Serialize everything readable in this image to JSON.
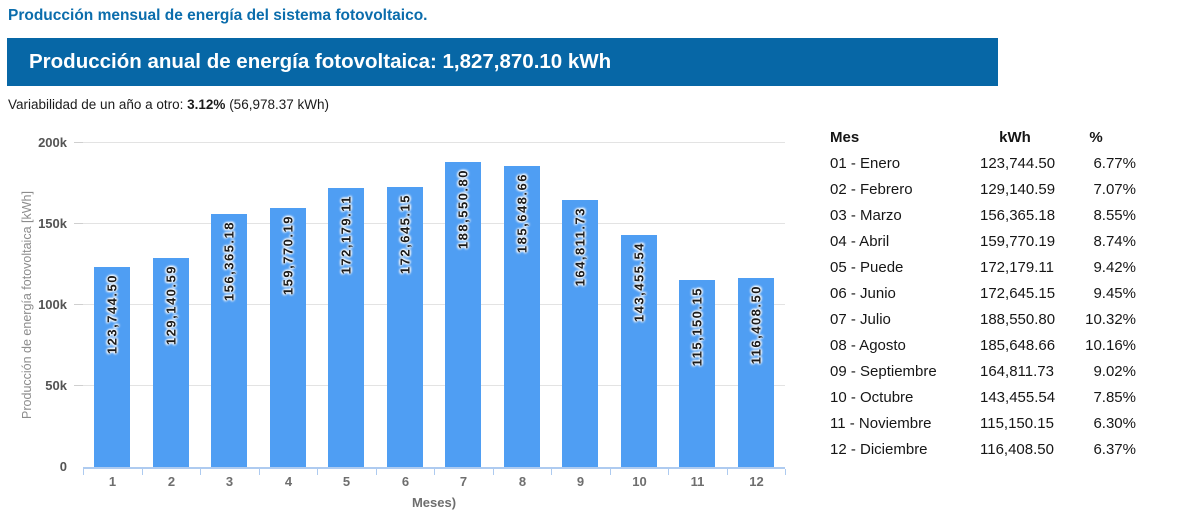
{
  "page": {
    "title": "Producción mensual de energía del sistema fotovoltaico.",
    "banner_text": "Producción anual de energía fotovoltaica: 1,827,870.10 kWh",
    "variability": {
      "prefix": "Variabilidad de un año a otro:",
      "value": "3.12%",
      "suffix": "(56,978.37 kWh)"
    }
  },
  "colors": {
    "accent_blue": "#0767A6",
    "title_blue": "#0B6DAC",
    "bar_blue": "#4F9EF3",
    "axis_blue": "#AECBF0",
    "grid_gray": "#E3E3E3"
  },
  "chart_data": {
    "type": "bar",
    "title": "",
    "xlabel": "Meses)",
    "ylabel": "Producción de energía fotovoltaica [kWh]",
    "categories": [
      "1",
      "2",
      "3",
      "4",
      "5",
      "6",
      "7",
      "8",
      "9",
      "10",
      "11",
      "12"
    ],
    "values": [
      123744.5,
      129140.59,
      156365.18,
      159770.19,
      172179.11,
      172645.15,
      188550.8,
      185648.66,
      164811.73,
      143455.54,
      115150.15,
      116408.5
    ],
    "bar_labels": [
      "123,744.50",
      "129,140.59",
      "156,365.18",
      "159,770.19",
      "172,179.11",
      "172,645.15",
      "188,550.80",
      "185,648.66",
      "164,811.73",
      "143,455.54",
      "115,150.15",
      "116,408.50"
    ],
    "ylim": [
      0,
      200000
    ],
    "ytick_labels": [
      "0",
      "50k",
      "100k",
      "150k",
      "200k"
    ],
    "ytick_values": [
      0,
      50000,
      100000,
      150000,
      200000
    ],
    "grid": true,
    "legend": "none"
  },
  "table": {
    "headers": [
      "Mes",
      "kWh",
      "%"
    ],
    "rows": [
      [
        "01 - Enero",
        "123,744.50",
        "6.77%"
      ],
      [
        "02 - Febrero",
        "129,140.59",
        "7.07%"
      ],
      [
        "03 - Marzo",
        "156,365.18",
        "8.55%"
      ],
      [
        "04 - Abril",
        "159,770.19",
        "8.74%"
      ],
      [
        "05 - Puede",
        "172,179.11",
        "9.42%"
      ],
      [
        "06 - Junio",
        "172,645.15",
        "9.45%"
      ],
      [
        "07 - Julio",
        "188,550.80",
        "10.32%"
      ],
      [
        "08 - Agosto",
        "185,648.66",
        "10.16%"
      ],
      [
        "09 - Septiembre",
        "164,811.73",
        "9.02%"
      ],
      [
        "10 - Octubre",
        "143,455.54",
        "7.85%"
      ],
      [
        "11 - Noviembre",
        "115,150.15",
        "6.30%"
      ],
      [
        "12 - Diciembre",
        "116,408.50",
        "6.37%"
      ]
    ]
  }
}
